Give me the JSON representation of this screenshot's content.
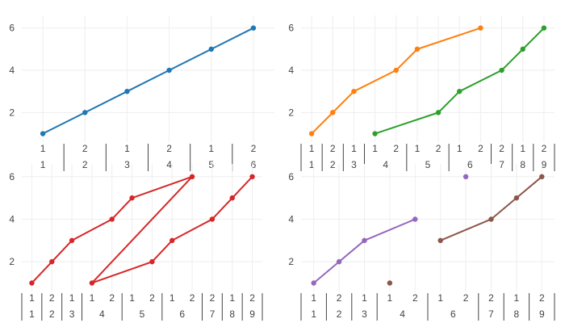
{
  "colors": {
    "blue": "#1f77b4",
    "orange": "#ff7f0e",
    "green": "#2ca02c",
    "red": "#d62728",
    "purple": "#9467bd",
    "brown": "#8c564b",
    "grid": "#eeeeee",
    "text": "#444444"
  },
  "chart_data": [
    {
      "type": "line",
      "panel": "top-left",
      "ylim": [
        0.6,
        6.6
      ],
      "yticks": [
        "2",
        "4",
        "6"
      ],
      "x_categories": [
        {
          "top": "1",
          "bottom": "1"
        },
        {
          "top": "2",
          "bottom": "2"
        },
        {
          "top": "1",
          "bottom": "3"
        },
        {
          "top": "2",
          "bottom": "4"
        },
        {
          "top": "1",
          "bottom": "5"
        },
        {
          "top": "2",
          "bottom": "6"
        }
      ],
      "group_dividers": [
        1,
        2,
        3,
        4,
        5
      ],
      "series": [
        {
          "color": "blue",
          "points": [
            [
              0,
              1
            ],
            [
              1,
              2
            ],
            [
              2,
              3
            ],
            [
              3,
              4
            ],
            [
              4,
              5
            ],
            [
              5,
              6
            ]
          ]
        }
      ]
    },
    {
      "type": "line",
      "panel": "top-right",
      "ylim": [
        0.6,
        6.6
      ],
      "yticks": [
        "2",
        "4",
        "6"
      ],
      "x_categories": [
        {
          "top": "1",
          "bottom": "1"
        },
        {
          "top": "2",
          "bottom": "2"
        },
        {
          "top": "1",
          "bottom": "3"
        },
        {
          "top": "1",
          "bottom": "4"
        },
        {
          "top": "2",
          "bottom": "4"
        },
        {
          "top": "1",
          "bottom": "5"
        },
        {
          "top": "2",
          "bottom": "5"
        },
        {
          "top": "1",
          "bottom": "6"
        },
        {
          "top": "2",
          "bottom": "6"
        },
        {
          "top": "2",
          "bottom": "7"
        },
        {
          "top": "1",
          "bottom": "8"
        },
        {
          "top": "2",
          "bottom": "9"
        }
      ],
      "bottom_spans": [
        {
          "label": "1",
          "start": 0,
          "end": 1
        },
        {
          "label": "2",
          "start": 1,
          "end": 2
        },
        {
          "label": "3",
          "start": 2,
          "end": 3
        },
        {
          "label": "4",
          "start": 3,
          "end": 5
        },
        {
          "label": "5",
          "start": 5,
          "end": 7
        },
        {
          "label": "6",
          "start": 7,
          "end": 9
        },
        {
          "label": "7",
          "start": 9,
          "end": 10
        },
        {
          "label": "8",
          "start": 10,
          "end": 11
        },
        {
          "label": "9",
          "start": 11,
          "end": 12
        }
      ],
      "series": [
        {
          "color": "orange",
          "points": [
            [
              0,
              1
            ],
            [
              1,
              2
            ],
            [
              2,
              3
            ],
            [
              4,
              4
            ],
            [
              5,
              5
            ],
            [
              8,
              6
            ]
          ]
        },
        {
          "color": "green",
          "points": [
            [
              3,
              1
            ],
            [
              6,
              2
            ],
            [
              7,
              3
            ],
            [
              9,
              4
            ],
            [
              10,
              5
            ],
            [
              11,
              6
            ]
          ]
        }
      ]
    },
    {
      "type": "line",
      "panel": "bottom-left",
      "ylim": [
        0.6,
        6.6
      ],
      "yticks": [
        "2",
        "4",
        "6"
      ],
      "x_categories": [
        {
          "top": "1",
          "bottom": "1"
        },
        {
          "top": "2",
          "bottom": "2"
        },
        {
          "top": "1",
          "bottom": "3"
        },
        {
          "top": "1",
          "bottom": "4"
        },
        {
          "top": "2",
          "bottom": "4"
        },
        {
          "top": "1",
          "bottom": "5"
        },
        {
          "top": "2",
          "bottom": "5"
        },
        {
          "top": "1",
          "bottom": "6"
        },
        {
          "top": "2",
          "bottom": "6"
        },
        {
          "top": "2",
          "bottom": "7"
        },
        {
          "top": "1",
          "bottom": "8"
        },
        {
          "top": "2",
          "bottom": "9"
        }
      ],
      "bottom_spans": [
        {
          "label": "1",
          "start": 0,
          "end": 1
        },
        {
          "label": "2",
          "start": 1,
          "end": 2
        },
        {
          "label": "3",
          "start": 2,
          "end": 3
        },
        {
          "label": "4",
          "start": 3,
          "end": 5
        },
        {
          "label": "5",
          "start": 5,
          "end": 7
        },
        {
          "label": "6",
          "start": 7,
          "end": 9
        },
        {
          "label": "7",
          "start": 9,
          "end": 10
        },
        {
          "label": "8",
          "start": 10,
          "end": 11
        },
        {
          "label": "9",
          "start": 11,
          "end": 12
        }
      ],
      "series": [
        {
          "color": "red",
          "points": [
            [
              0,
              1
            ],
            [
              1,
              2
            ],
            [
              2,
              3
            ],
            [
              4,
              4
            ],
            [
              5,
              5
            ],
            [
              8,
              6
            ],
            [
              3,
              1
            ],
            [
              6,
              2
            ],
            [
              7,
              3
            ],
            [
              9,
              4
            ],
            [
              10,
              5
            ],
            [
              11,
              6
            ]
          ]
        }
      ]
    },
    {
      "type": "line",
      "panel": "bottom-right",
      "ylim": [
        0.6,
        6.6
      ],
      "yticks": [
        "2",
        "4",
        "6"
      ],
      "x_categories": [
        {
          "top": "1",
          "bottom": "1"
        },
        {
          "top": "2",
          "bottom": "2"
        },
        {
          "top": "1",
          "bottom": "3"
        },
        {
          "top": "1",
          "bottom": "4"
        },
        {
          "top": "2",
          "bottom": "4"
        },
        {
          "top": "1",
          "bottom": "6"
        },
        {
          "top": "2",
          "bottom": "6"
        },
        {
          "top": "2",
          "bottom": "7"
        },
        {
          "top": "1",
          "bottom": "8"
        },
        {
          "top": "2",
          "bottom": "9"
        }
      ],
      "bottom_spans": [
        {
          "label": "1",
          "start": 0,
          "end": 1
        },
        {
          "label": "2",
          "start": 1,
          "end": 2
        },
        {
          "label": "3",
          "start": 2,
          "end": 3
        },
        {
          "label": "4",
          "start": 3,
          "end": 5
        },
        {
          "label": "6",
          "start": 5,
          "end": 7
        },
        {
          "label": "7",
          "start": 7,
          "end": 8
        },
        {
          "label": "8",
          "start": 8,
          "end": 9
        },
        {
          "label": "9",
          "start": 9,
          "end": 10
        }
      ],
      "series": [
        {
          "color": "purple",
          "points": [
            [
              0,
              1
            ],
            [
              1,
              2
            ],
            [
              2,
              3
            ],
            [
              4,
              4
            ],
            null,
            [
              6,
              6
            ]
          ]
        },
        {
          "color": "brown",
          "points": [
            [
              3,
              1
            ],
            null,
            [
              5,
              3
            ],
            [
              7,
              4
            ],
            [
              8,
              5
            ],
            [
              9,
              6
            ]
          ]
        }
      ]
    }
  ]
}
